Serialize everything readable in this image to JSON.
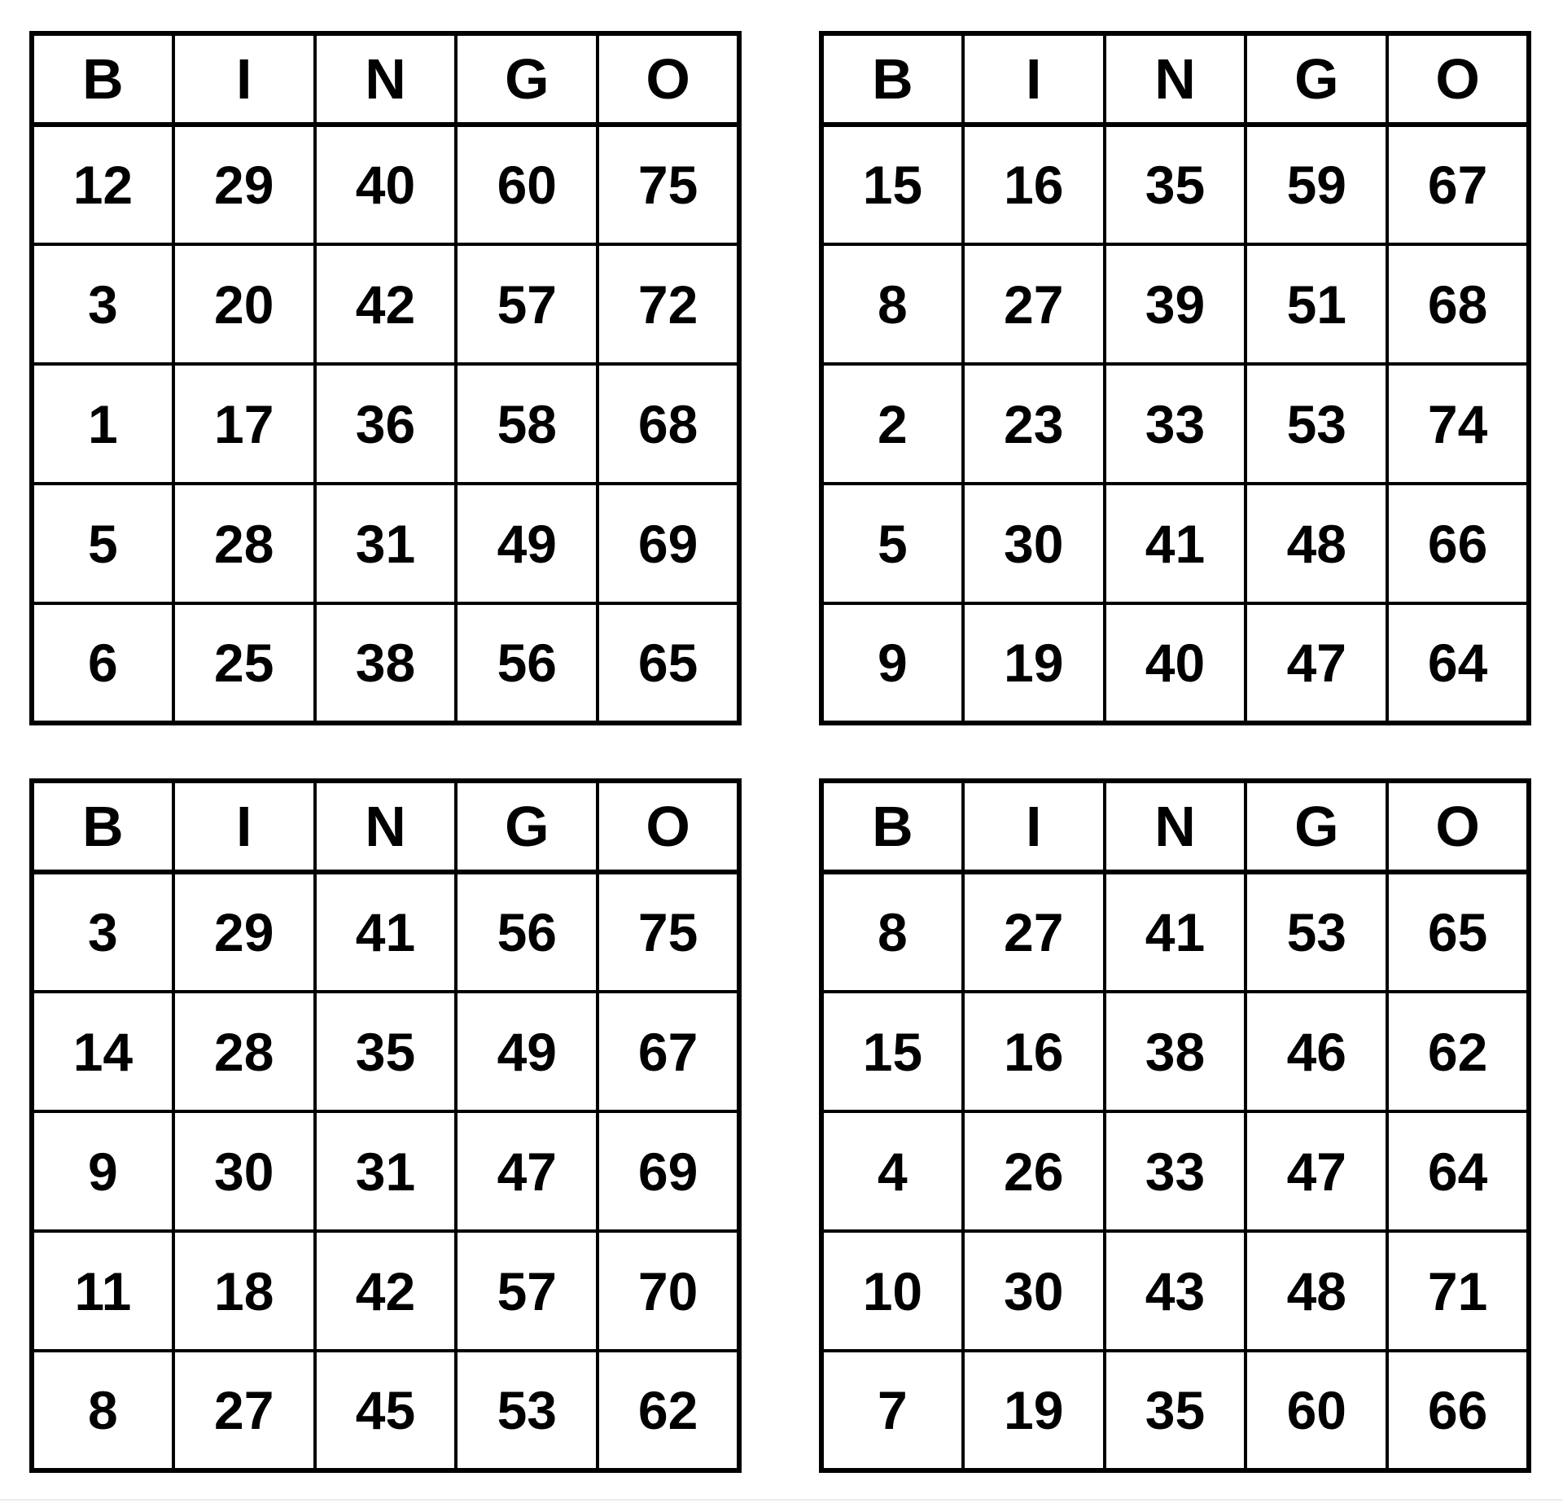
{
  "page": {
    "background_color": "#ffffff",
    "grid_line_color": "#000000",
    "text_color": "#000000"
  },
  "bingo": {
    "column_letters": [
      "B",
      "I",
      "N",
      "G",
      "O"
    ],
    "cards": [
      {
        "position": "top-left",
        "rows": [
          [
            12,
            29,
            40,
            60,
            75
          ],
          [
            3,
            20,
            42,
            57,
            72
          ],
          [
            1,
            17,
            36,
            58,
            68
          ],
          [
            5,
            28,
            31,
            49,
            69
          ],
          [
            6,
            25,
            38,
            56,
            65
          ]
        ]
      },
      {
        "position": "top-right",
        "rows": [
          [
            15,
            16,
            35,
            59,
            67
          ],
          [
            8,
            27,
            39,
            51,
            68
          ],
          [
            2,
            23,
            33,
            53,
            74
          ],
          [
            5,
            30,
            41,
            48,
            66
          ],
          [
            9,
            19,
            40,
            47,
            64
          ]
        ]
      },
      {
        "position": "bottom-left",
        "rows": [
          [
            3,
            29,
            41,
            56,
            75
          ],
          [
            14,
            28,
            35,
            49,
            67
          ],
          [
            9,
            30,
            31,
            47,
            69
          ],
          [
            11,
            18,
            42,
            57,
            70
          ],
          [
            8,
            27,
            45,
            53,
            62
          ]
        ]
      },
      {
        "position": "bottom-right",
        "rows": [
          [
            8,
            27,
            41,
            53,
            65
          ],
          [
            15,
            16,
            38,
            46,
            62
          ],
          [
            4,
            26,
            33,
            47,
            64
          ],
          [
            10,
            30,
            43,
            48,
            71
          ],
          [
            7,
            19,
            35,
            60,
            66
          ]
        ]
      }
    ]
  }
}
